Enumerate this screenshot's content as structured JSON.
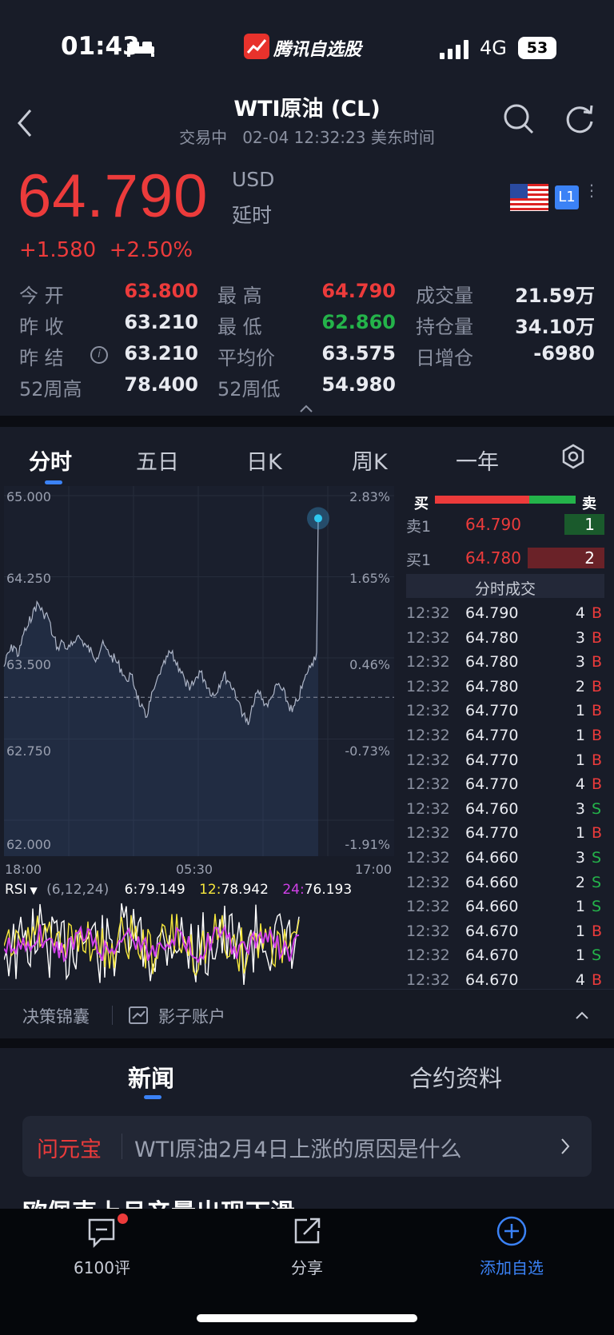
{
  "status": {
    "time": "01:43",
    "app_name": "腾讯自选股",
    "network": "4G",
    "battery": "53"
  },
  "header": {
    "title": "WTI原油 (CL)",
    "subtitle": "交易中   02-04 12:32:23 美东时间"
  },
  "quote": {
    "price": "64.790",
    "currency": "USD",
    "delay": "延时",
    "change": "+1.580",
    "change_pct": "+2.50%",
    "level": "L1"
  },
  "stats": {
    "open_label": "今   开",
    "open": "63.800",
    "high_label": "最   高",
    "high": "64.790",
    "volume_label": "成交量",
    "volume": "21.59万",
    "prev_close_label": "昨   收",
    "prev_close": "63.210",
    "low_label": "最   低",
    "low": "62.860",
    "oi_label": "持仓量",
    "oi": "34.10万",
    "prev_settle_label": "昨   结",
    "prev_settle": "63.210",
    "avg_label": "平均价",
    "avg": "63.575",
    "oi_change_label": "日增仓",
    "oi_change": "-6980",
    "w52_high_label": "52周高",
    "w52_high": "78.400",
    "w52_low_label": "52周低",
    "w52_low": "54.980"
  },
  "tabs": [
    "分时",
    "五日",
    "日K",
    "周K",
    "一年"
  ],
  "chart_data": {
    "type": "line",
    "title": "",
    "y_left_ticks": [
      "65.000",
      "64.250",
      "63.500",
      "62.750",
      "62.000"
    ],
    "y_right_ticks": [
      "2.83%",
      "1.65%",
      "0.46%",
      "-0.73%",
      "-1.91%"
    ],
    "x_ticks": [
      "18:00",
      "05:30",
      "17:00"
    ],
    "ylim": [
      62.0,
      65.0
    ],
    "prev_settle": 63.21,
    "series": [
      {
        "values": [
          63.42,
          63.55,
          63.61,
          63.52,
          63.72,
          63.8,
          63.95,
          64.0,
          63.92,
          63.88,
          63.7,
          63.6,
          63.65,
          63.58,
          63.62,
          63.7,
          63.66,
          63.6,
          63.55,
          63.5,
          63.62,
          63.58,
          63.52,
          63.46,
          63.4,
          63.3,
          63.35,
          63.2,
          63.05,
          62.95,
          63.1,
          63.25,
          63.35,
          63.45,
          63.55,
          63.48,
          63.4,
          63.3,
          63.2,
          63.28,
          63.38,
          63.3,
          63.22,
          63.15,
          63.25,
          63.35,
          63.28,
          63.22,
          63.1,
          62.98,
          62.88,
          63.05,
          63.2,
          63.12,
          63.05,
          63.15,
          63.25,
          63.2,
          63.1,
          63.0,
          63.1,
          63.22,
          63.35,
          63.45,
          63.55,
          64.79
        ]
      }
    ]
  },
  "rsi": {
    "label": "RSI",
    "params": "(6,12,24)",
    "r6_label": "6:",
    "r6": "79.149",
    "r12_label": "12:",
    "r12": "78.942",
    "r24_label": "24:",
    "r24": "76.193"
  },
  "order_book": {
    "buy_label": "买",
    "sell_label": "卖",
    "ask_label": "卖1",
    "ask_price": "64.790",
    "ask_size": "1",
    "bid_label": "买1",
    "bid_price": "64.780",
    "bid_size": "2",
    "ticks_title": "分时成交"
  },
  "ticks": [
    {
      "time": "12:32",
      "price": "64.790",
      "vol": "4",
      "side": "B"
    },
    {
      "time": "12:32",
      "price": "64.780",
      "vol": "3",
      "side": "B"
    },
    {
      "time": "12:32",
      "price": "64.780",
      "vol": "3",
      "side": "B"
    },
    {
      "time": "12:32",
      "price": "64.780",
      "vol": "2",
      "side": "B"
    },
    {
      "time": "12:32",
      "price": "64.770",
      "vol": "1",
      "side": "B"
    },
    {
      "time": "12:32",
      "price": "64.770",
      "vol": "1",
      "side": "B"
    },
    {
      "time": "12:32",
      "price": "64.770",
      "vol": "1",
      "side": "B"
    },
    {
      "time": "12:32",
      "price": "64.770",
      "vol": "4",
      "side": "B"
    },
    {
      "time": "12:32",
      "price": "64.760",
      "vol": "3",
      "side": "S"
    },
    {
      "time": "12:32",
      "price": "64.770",
      "vol": "1",
      "side": "B"
    },
    {
      "time": "12:32",
      "price": "64.660",
      "vol": "3",
      "side": "S"
    },
    {
      "time": "12:32",
      "price": "64.660",
      "vol": "2",
      "side": "S"
    },
    {
      "time": "12:32",
      "price": "64.660",
      "vol": "1",
      "side": "S"
    },
    {
      "time": "12:32",
      "price": "64.670",
      "vol": "1",
      "side": "B"
    },
    {
      "time": "12:32",
      "price": "64.670",
      "vol": "1",
      "side": "S"
    },
    {
      "time": "12:32",
      "price": "64.670",
      "vol": "4",
      "side": "B"
    }
  ],
  "tools": {
    "decision": "决策锦囊",
    "shadow": "影子账户"
  },
  "content_tabs": [
    "新闻",
    "合约资料"
  ],
  "ai": {
    "name": "问元宝",
    "question": "WTI原油2月4日上涨的原因是什么"
  },
  "news_preview": "欧佩克上月产量出现下滑",
  "bottom": {
    "comments": "6100评",
    "share": "分享",
    "add": "添加自选"
  },
  "colors": {
    "up": "#ec3b3b",
    "down": "#24b34a",
    "accent": "#3b82f6",
    "bg": "#181c28"
  }
}
